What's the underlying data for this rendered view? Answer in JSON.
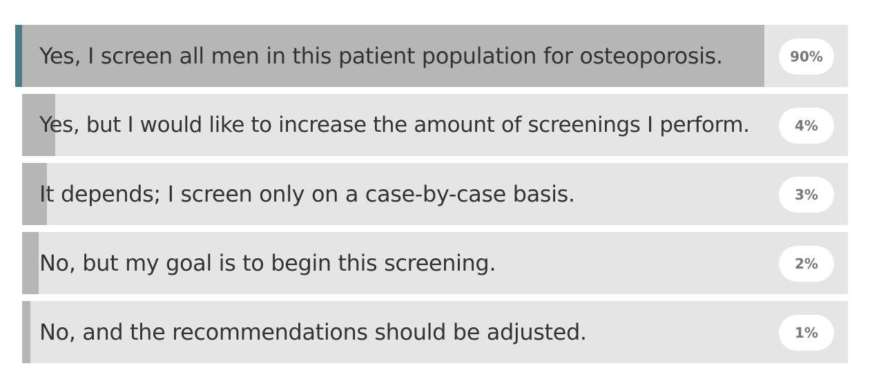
{
  "poll": {
    "options": [
      {
        "label": "Yes, I screen all men in this patient population for osteoporosis.",
        "percent": 90,
        "percent_label": "90%",
        "selected": true
      },
      {
        "label": "Yes, but I would like to increase the amount of screenings I perform.",
        "percent": 4,
        "percent_label": "4%",
        "selected": false
      },
      {
        "label": "It depends; I screen only on a case-by-case basis.",
        "percent": 3,
        "percent_label": "3%",
        "selected": false
      },
      {
        "label": "No, but my goal is to begin this screening.",
        "percent": 2,
        "percent_label": "2%",
        "selected": false
      },
      {
        "label": "No, and the recommendations should be adjusted.",
        "percent": 1,
        "percent_label": "1%",
        "selected": false
      }
    ],
    "colors": {
      "track": "#e5e5e5",
      "fill": "#b6b6b6",
      "accent": "#4a7b89",
      "badge_bg": "#ffffff",
      "badge_text": "#777777"
    }
  }
}
